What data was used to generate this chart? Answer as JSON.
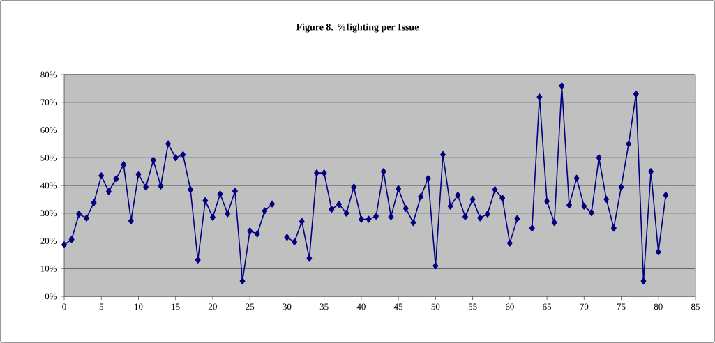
{
  "chart_data": {
    "type": "line",
    "title": "Figure 8.  %fighting per Issue",
    "x": [
      0,
      1,
      2,
      3,
      4,
      5,
      6,
      7,
      8,
      9,
      10,
      11,
      12,
      13,
      14,
      15,
      16,
      17,
      18,
      19,
      20,
      21,
      22,
      23,
      24,
      25,
      26,
      27,
      28,
      29,
      30,
      31,
      32,
      33,
      34,
      35,
      36,
      37,
      38,
      39,
      40,
      41,
      42,
      43,
      44,
      45,
      46,
      47,
      48,
      49,
      50,
      51,
      52,
      53,
      54,
      55,
      56,
      57,
      58,
      59,
      60,
      61,
      62,
      63,
      64,
      65,
      66,
      67,
      68,
      69,
      70,
      71,
      72,
      73,
      74,
      75,
      76,
      77,
      78,
      79,
      80,
      81
    ],
    "series": [
      {
        "color": "#000080",
        "values": [
          18.6,
          20.5,
          29.7,
          28.2,
          33.8,
          43.5,
          37.8,
          42.4,
          47.5,
          27.2,
          44,
          39.4,
          49.1,
          39.8,
          55,
          50,
          51.1,
          38.5,
          13.1,
          34.5,
          28.5,
          36.9,
          29.8,
          38,
          5.5,
          23.6,
          22.5,
          30.8,
          33.3,
          null,
          21.3,
          19.6,
          27,
          13.7,
          44.5,
          44.5,
          31.4,
          33.2,
          30,
          39.4,
          27.8,
          27.8,
          28.9,
          45,
          28.7,
          38.8,
          31.7,
          26.6,
          35.9,
          42.5,
          11,
          51.1,
          32.5,
          36.5,
          28.7,
          35,
          28.3,
          29.7,
          38.5,
          35.4,
          19.2,
          28,
          null,
          24.6,
          71.9,
          34.3,
          26.6,
          75.9,
          32.9,
          42.6,
          32.5,
          30.2,
          50,
          35,
          24.6,
          39.4,
          55,
          73,
          5.5,
          45,
          16,
          36.5
        ]
      }
    ],
    "xlim": [
      0,
      85
    ],
    "xticks": [
      0,
      5,
      10,
      15,
      20,
      25,
      30,
      35,
      40,
      45,
      50,
      55,
      60,
      65,
      70,
      75,
      80,
      85
    ],
    "ylim": [
      0,
      80
    ],
    "yticks": [
      {
        "value": 0,
        "label": "0%"
      },
      {
        "value": 10,
        "label": "10%"
      },
      {
        "value": 20,
        "label": "20%"
      },
      {
        "value": 30,
        "label": "30%"
      },
      {
        "value": 40,
        "label": "40%"
      },
      {
        "value": 50,
        "label": "50%"
      },
      {
        "value": 60,
        "label": "60%"
      },
      {
        "value": 70,
        "label": "70%"
      },
      {
        "value": 80,
        "label": "80%"
      }
    ],
    "grid": "y",
    "marker": "diamond",
    "line_style": "solid"
  }
}
